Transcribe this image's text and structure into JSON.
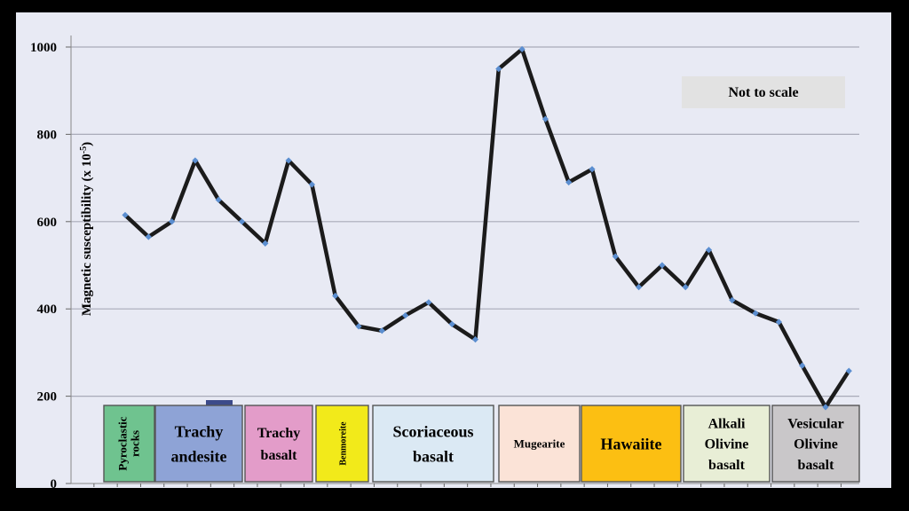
{
  "chart_data": {
    "type": "line",
    "title": "",
    "xlabel": "",
    "ylabel": "Magnetic susceptibility (x 10",
    "ylabel_superscript": "-5",
    "ylabel_suffix": ")",
    "ylim": [
      0,
      1050
    ],
    "yticks": [
      0,
      200,
      400,
      600,
      800,
      1000
    ],
    "grid": true,
    "annotation": "Not to scale",
    "series": [
      {
        "values": [
          615,
          565,
          600,
          740,
          650,
          600,
          550,
          740,
          685,
          430,
          360,
          350,
          385,
          415,
          365,
          330,
          950,
          995,
          835,
          690,
          720,
          520,
          450,
          500,
          450,
          535,
          420,
          390,
          370,
          270,
          175,
          258
        ]
      }
    ],
    "rock_types": [
      {
        "label": "Pyroclastic rocks",
        "lines": [
          "Pyroclastic",
          "rocks"
        ],
        "color": "#6fc38f"
      },
      {
        "label": "Trachy andesite",
        "lines": [
          "Trachy",
          "andesite"
        ],
        "color": "#8ea3d6"
      },
      {
        "label": "Trachy basalt",
        "lines": [
          "Trachy",
          "basalt"
        ],
        "color": "#e39cc9"
      },
      {
        "label": "Benmoreite",
        "lines": [
          "Benmoreite"
        ],
        "color": "#f2ea1a"
      },
      {
        "label": "Scoriaceous basalt",
        "lines": [
          "Scoriaceous",
          "basalt"
        ],
        "color": "#dbe9f4"
      },
      {
        "label": "Mugearite",
        "lines": [
          "Mugearite"
        ],
        "color": "#fbe3d7"
      },
      {
        "label": "Hawaiite",
        "lines": [
          "Hawaiite"
        ],
        "color": "#fcbf12"
      },
      {
        "label": "Alkali Olivine basalt",
        "lines": [
          "Alkali",
          "Olivine",
          "basalt"
        ],
        "color": "#e8eed6"
      },
      {
        "label": "Vesicular Olivine basalt",
        "lines": [
          "Vesicular",
          "Olivine",
          "basalt"
        ],
        "color": "#c9c7c9"
      }
    ],
    "colors": {
      "plot_background": "#e8eaf4",
      "line": "#1b1b1b",
      "marker": "#5b8ed0",
      "grid": "#a9abb8",
      "note_box": "#e2e2e2"
    }
  }
}
